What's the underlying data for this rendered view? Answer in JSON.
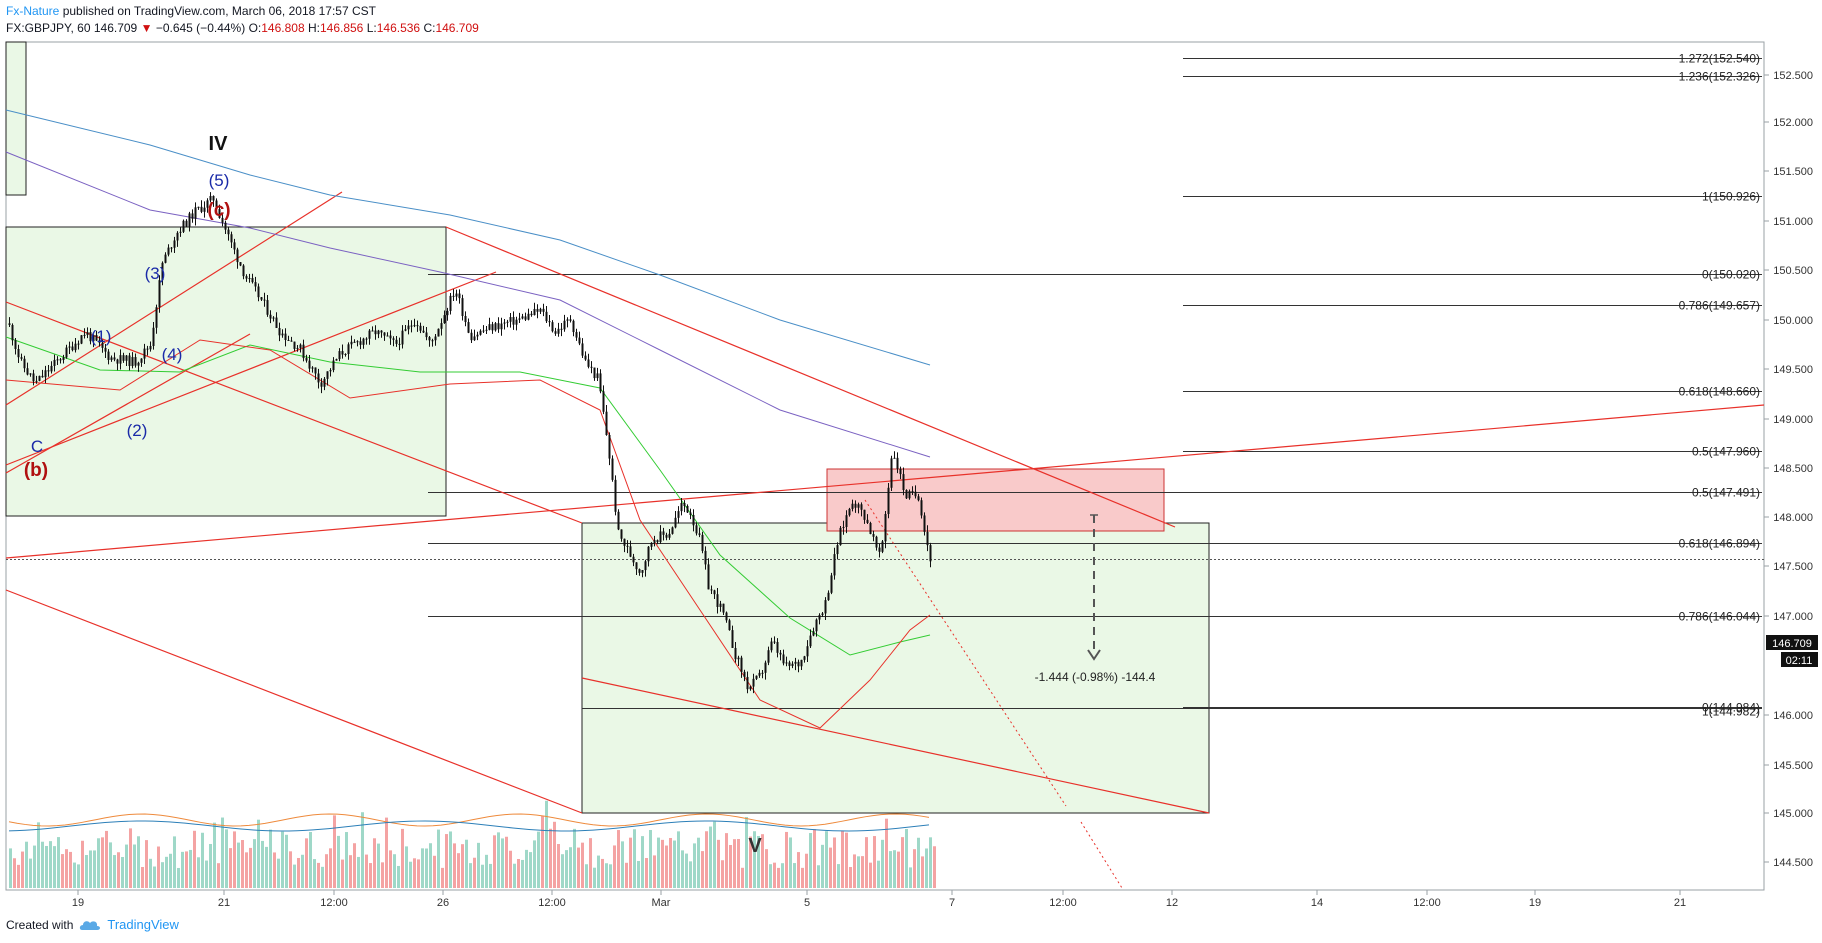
{
  "header": {
    "author": "Fx-Nature",
    "published_text": "published on TradingView.com, March 06, 2018 17:57 CST",
    "symbol": "FX:GBPJPY, 60",
    "last": "146.709",
    "direction_icon": "down-triangle",
    "change": "−0.645 (−0.44%)",
    "o_label": "O:",
    "o_value": "146.808",
    "h_label": "H:",
    "h_value": "146.856",
    "l_label": "L:",
    "l_value": "146.536",
    "c_label": "C:",
    "c_value": "146.709"
  },
  "footer": {
    "created_with": "Created with",
    "brand": "TradingView",
    "logo_icon": "tradingview-cloud-icon"
  },
  "chart_data": {
    "type": "line",
    "title": "GBPJPY 60",
    "y_ticks": [
      "152.500",
      "152.000",
      "151.500",
      "151.000",
      "150.500",
      "150.000",
      "149.500",
      "149.000",
      "148.500",
      "148.000",
      "147.500",
      "147.000",
      "146.000",
      "145.500",
      "145.000",
      "144.500"
    ],
    "ylim": [
      144.2,
      152.8
    ],
    "x_ticks": [
      "19",
      "21",
      "12:00",
      "26",
      "12:00",
      "Mar",
      "5",
      "7",
      "12:00",
      "12",
      "14",
      "12:00",
      "19",
      "21"
    ],
    "last_price_label": "146.709",
    "countdown_label": "02:11",
    "fib_levels": [
      {
        "label": "1.272(152.540)",
        "value": 152.54
      },
      {
        "label": "1.236(152.326)",
        "value": 152.326
      },
      {
        "label": "1(150.926)",
        "value": 150.926
      },
      {
        "label": "0(150.020)",
        "value": 150.02
      },
      {
        "label": "0.786(149.657)",
        "value": 149.657
      },
      {
        "label": "0.618(148.660)",
        "value": 148.66
      },
      {
        "label": "0.5(147.960)",
        "value": 147.96
      },
      {
        "label": "0.5(147.491)",
        "value": 147.491
      },
      {
        "label": "0.618(146.894)",
        "value": 146.894
      },
      {
        "label": "0.786(146.044)",
        "value": 146.044
      },
      {
        "label": "0(144.984)",
        "value": 144.984
      },
      {
        "label": "1(144.982)",
        "value": 144.982
      }
    ],
    "wave_labels": [
      {
        "text": "IV",
        "color": "#111111"
      },
      {
        "text": "(5)",
        "color": "#1a2aa8"
      },
      {
        "text": "(c)",
        "color": "#b01010"
      },
      {
        "text": "(3)",
        "color": "#1a2aa8"
      },
      {
        "text": "(1)",
        "color": "#1a2aa8"
      },
      {
        "text": "(4)",
        "color": "#1a2aa8"
      },
      {
        "text": "(2)",
        "color": "#1a2aa8"
      },
      {
        "text": "C",
        "color": "#1a2aa8"
      },
      {
        "text": "(b)",
        "color": "#b01010"
      },
      {
        "text": "V",
        "color": "#333333"
      }
    ],
    "measure_label": "-1.444 (-0.98%) -144.4",
    "colors": {
      "up": "#26a69a",
      "down": "#ef5350",
      "candle": "#111111",
      "trend": "#e8312a",
      "ma_green": "#33cc33",
      "ma_blue": "#4a8fc7",
      "ma_purple": "#7b62c2",
      "box_fill": "#eaf8e6",
      "target_fill": "#f9caca"
    }
  }
}
